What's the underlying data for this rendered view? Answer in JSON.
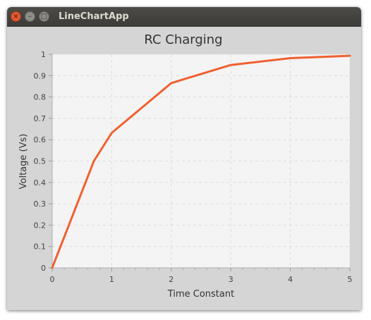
{
  "window": {
    "title": "LineChartApp",
    "close_glyph": "×",
    "minimize_glyph": "–",
    "maximize_glyph": "□"
  },
  "colors": {
    "line": "#f06030",
    "plot_background": "#f4f4f4",
    "grid": "#dcdcdc"
  },
  "chart_data": {
    "type": "line",
    "title": "RC Charging",
    "xlabel": "Time Constant",
    "ylabel": "Voltage (Vs)",
    "xlim": [
      0,
      5
    ],
    "ylim": [
      0,
      1
    ],
    "x_ticks": [
      "0",
      "1",
      "2",
      "3",
      "4",
      "5"
    ],
    "y_ticks": [
      "0",
      "0.1",
      "0.2",
      "0.3",
      "0.4",
      "0.5",
      "0.6",
      "0.7",
      "0.8",
      "0.9",
      "1"
    ],
    "grid": true,
    "legend": false,
    "series": [
      {
        "x": [
          0,
          0.7,
          1,
          2,
          3,
          4,
          5
        ],
        "values": [
          0,
          0.5,
          0.632,
          0.865,
          0.95,
          0.982,
          0.993
        ]
      }
    ]
  }
}
